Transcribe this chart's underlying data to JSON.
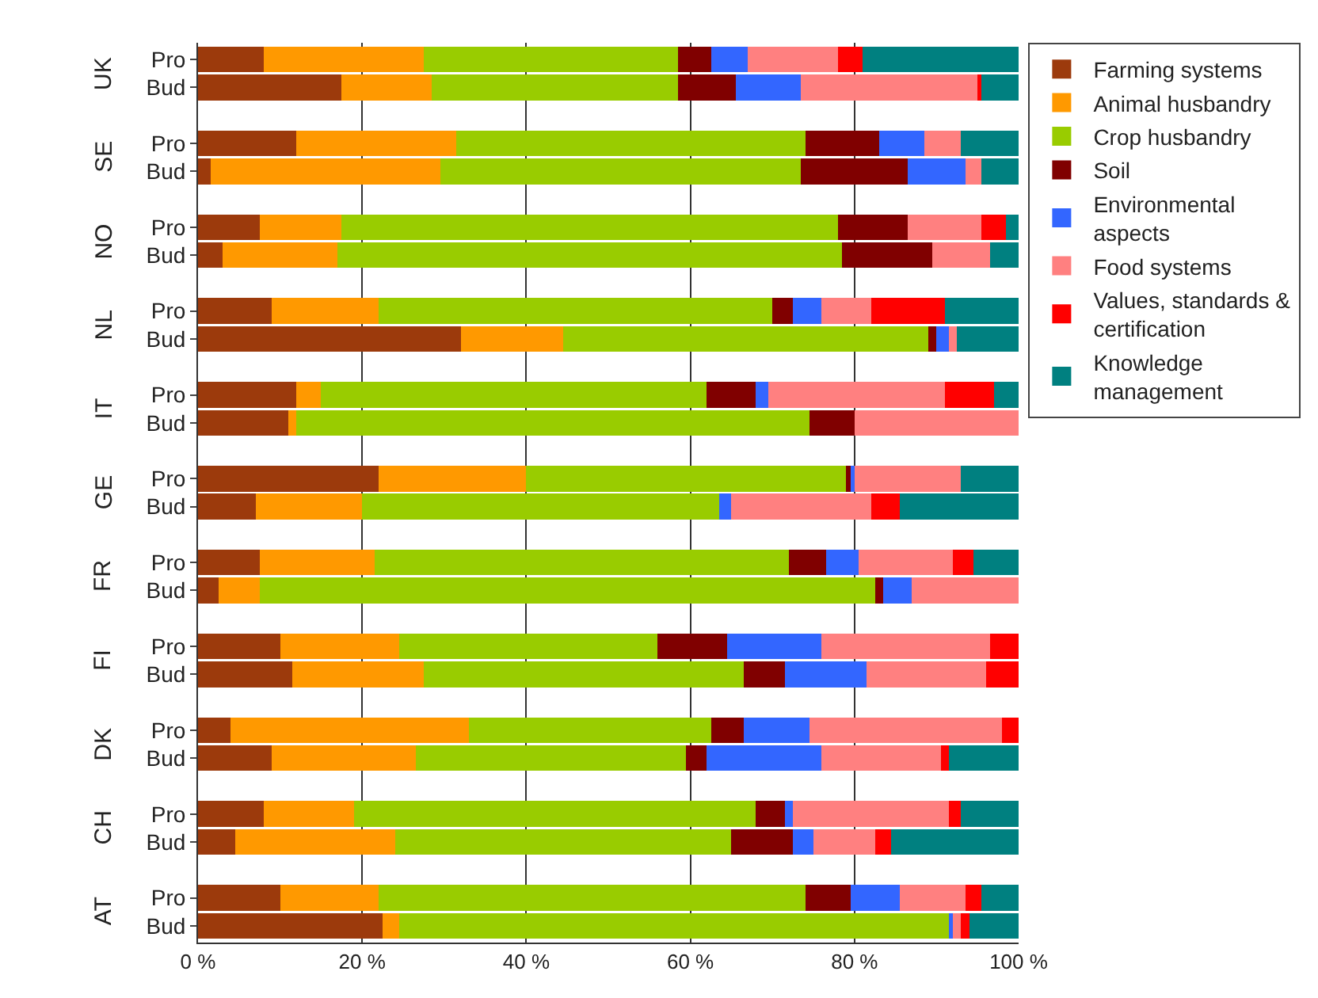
{
  "chart_data": {
    "type": "bar",
    "orientation": "horizontal",
    "stacked": true,
    "categories": [
      "Pro",
      "Bud",
      null,
      "Pro",
      "Bud",
      null,
      "Pro",
      "Bud",
      null,
      "Pro",
      "Bud",
      null,
      "Pro",
      "Bud",
      null,
      "Pro",
      "Bud",
      null,
      "Pro",
      "Bud",
      null,
      "Pro",
      "Bud",
      null,
      "Pro",
      "Bud",
      null,
      "Pro",
      "Bud",
      null,
      "Pro",
      "Bud"
    ],
    "annotations": [
      "UK",
      "SE",
      "NO",
      "NL",
      "IT",
      "GE",
      "FR",
      "FI",
      "DK",
      "CH",
      "AT"
    ],
    "series": [
      {
        "name": "Farming systems",
        "color": "#9c3a0c",
        "values": [
          8,
          17.5,
          null,
          12,
          1.5,
          null,
          7.5,
          3,
          null,
          9,
          32,
          null,
          12,
          11,
          null,
          22,
          7,
          null,
          7.5,
          2.5,
          null,
          10,
          11.5,
          null,
          4,
          9,
          null,
          8,
          4.5,
          null,
          10,
          22.5
        ]
      },
      {
        "name": "Animal husbandry",
        "color": "#ff9900",
        "values": [
          19.5,
          11,
          null,
          19.5,
          28,
          null,
          10,
          14,
          null,
          13,
          12.5,
          null,
          3,
          1,
          null,
          18,
          13,
          null,
          14,
          5,
          null,
          14.5,
          16,
          null,
          29,
          17.5,
          null,
          11,
          19.5,
          null,
          12,
          2
        ]
      },
      {
        "name": "Crop husbandry",
        "color": "#99cc00",
        "values": [
          31,
          30,
          null,
          42.5,
          44,
          null,
          60.5,
          61.5,
          null,
          48,
          44.5,
          null,
          47,
          62.5,
          null,
          39,
          43.5,
          null,
          50.5,
          75,
          null,
          31.5,
          39,
          null,
          29.5,
          33,
          null,
          49,
          41,
          null,
          52,
          67
        ]
      },
      {
        "name": "Soil",
        "color": "#800000",
        "values": [
          4,
          7,
          null,
          9,
          13,
          null,
          8.5,
          11,
          null,
          2.5,
          1,
          null,
          6,
          5.5,
          null,
          0.5,
          0,
          null,
          4.5,
          1,
          null,
          8.5,
          5,
          null,
          4,
          2.5,
          null,
          3.5,
          7.5,
          null,
          5.5,
          0
        ]
      },
      {
        "name": "Environmental aspects",
        "color": "#3366ff",
        "values": [
          4.5,
          8,
          null,
          5.5,
          7,
          null,
          0,
          0,
          null,
          3.5,
          1.5,
          null,
          1.5,
          0,
          null,
          0.5,
          1.5,
          null,
          4,
          3.5,
          null,
          11.5,
          10,
          null,
          8,
          14,
          null,
          1,
          2.5,
          null,
          6,
          0.5
        ]
      },
      {
        "name": "Food systems",
        "color": "#ff8080",
        "values": [
          11,
          21.5,
          null,
          4.5,
          2,
          null,
          9,
          7,
          null,
          6,
          1,
          null,
          21.5,
          20,
          null,
          13,
          17,
          null,
          11.5,
          13,
          null,
          20.5,
          14.5,
          null,
          23.5,
          14.5,
          null,
          19,
          7.5,
          null,
          8,
          1
        ]
      },
      {
        "name": "Values, standards & certification",
        "color": "#ff0000",
        "values": [
          3,
          0.5,
          null,
          0,
          0,
          null,
          3,
          0,
          null,
          9,
          0,
          null,
          6,
          0,
          null,
          0,
          3.5,
          null,
          2.5,
          0,
          null,
          3.5,
          4,
          null,
          2,
          1,
          null,
          1.5,
          2,
          null,
          2,
          1
        ]
      },
      {
        "name": "Knowledge management",
        "color": "#008080",
        "values": [
          19,
          4.5,
          null,
          7,
          4.5,
          null,
          1.5,
          3.5,
          null,
          9,
          7.5,
          null,
          3,
          0,
          null,
          7,
          14.5,
          null,
          5.5,
          0,
          null,
          0,
          0,
          null,
          0,
          8.5,
          null,
          7,
          15.5,
          null,
          4.5,
          6
        ]
      }
    ],
    "xlim": [
      0,
      100
    ],
    "xticks": [
      {
        "value": 0,
        "label": "0 %"
      },
      {
        "value": 20,
        "label": "20 %"
      },
      {
        "value": 40,
        "label": "40 %"
      },
      {
        "value": 60,
        "label": "60 %"
      },
      {
        "value": 80,
        "label": "80 %"
      },
      {
        "value": 100,
        "label": "100 %"
      }
    ],
    "grid": "x",
    "legend": "right"
  }
}
